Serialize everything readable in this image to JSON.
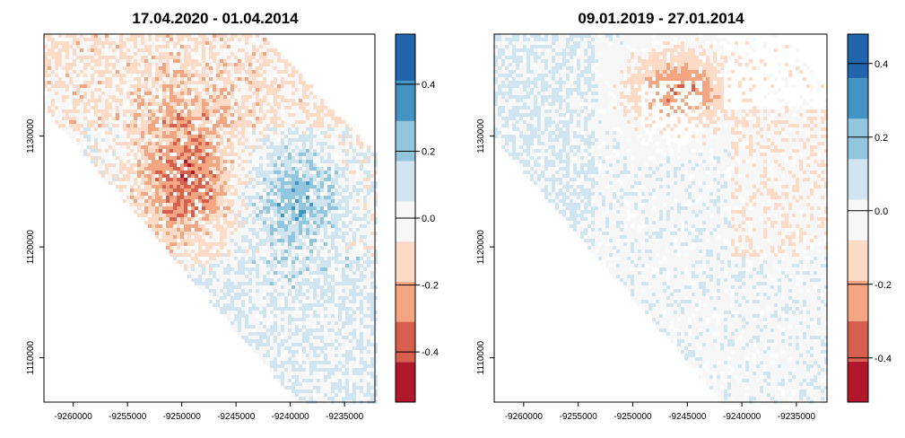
{
  "chart_data": [
    {
      "type": "heatmap",
      "title": "17.04.2020 - 01.04.2014",
      "xlabel": "",
      "ylabel": "",
      "x_ticks": [
        -9260000,
        -9255000,
        -9250000,
        -9245000,
        -9240000,
        -9235000
      ],
      "y_ticks": [
        1110000,
        1120000,
        1130000
      ],
      "x_tick_labels": [
        "-9260000",
        "-9255000",
        "-9250000",
        "-9245000",
        "-9240000",
        "-9235000"
      ],
      "y_tick_labels": [
        "1110000",
        "1120000",
        "1130000"
      ],
      "xlim": [
        -9262700,
        -9232200
      ],
      "ylim": [
        1106000,
        1139200
      ],
      "legend": {
        "breaks": [
          -0.55,
          -0.43,
          -0.31,
          -0.19,
          -0.07,
          0.05,
          0.17,
          0.29,
          0.41,
          0.55
        ],
        "colors": [
          "#b2182b",
          "#d6604d",
          "#f4a582",
          "#fddbc7",
          "#f7f7f7",
          "#d1e5f0",
          "#92c5de",
          "#4393c3",
          "#2166ac"
        ],
        "tick_values": [
          -0.4,
          -0.2,
          0.0,
          0.2,
          0.4
        ],
        "tick_labels": [
          "-0.4",
          "-0.2",
          "0.0",
          "0.2",
          "0.4"
        ],
        "placement": "right"
      }
    },
    {
      "type": "heatmap",
      "title": "09.01.2019 - 27.01.2014",
      "xlabel": "",
      "ylabel": "",
      "x_ticks": [
        -9260000,
        -9255000,
        -9250000,
        -9245000,
        -9240000,
        -9235000
      ],
      "y_ticks": [
        1110000,
        1120000,
        1130000
      ],
      "x_tick_labels": [
        "-9260000",
        "-9255000",
        "-9250000",
        "-9245000",
        "-9240000",
        "-9235000"
      ],
      "y_tick_labels": [
        "1110000",
        "1120000",
        "1130000"
      ],
      "xlim": [
        -9262700,
        -9232200
      ],
      "ylim": [
        1106000,
        1139200
      ],
      "legend": {
        "breaks": [
          -0.52,
          -0.41,
          -0.3,
          -0.19,
          -0.08,
          0.03,
          0.14,
          0.25,
          0.36,
          0.48
        ],
        "colors": [
          "#b2182b",
          "#d6604d",
          "#f4a582",
          "#fddbc7",
          "#f7f7f7",
          "#d1e5f0",
          "#92c5de",
          "#4393c3",
          "#2166ac"
        ],
        "tick_values": [
          -0.4,
          -0.2,
          0.0,
          0.2,
          0.4
        ],
        "tick_labels": [
          "-0.4",
          "-0.2",
          "0.0",
          "0.2",
          "0.4"
        ],
        "placement": "right"
      }
    }
  ]
}
